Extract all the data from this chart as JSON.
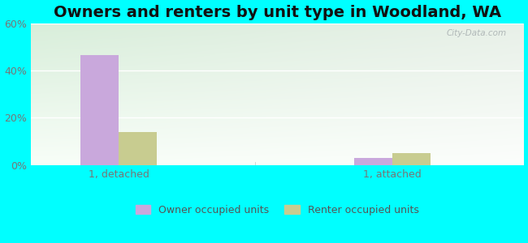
{
  "title": "Owners and renters by unit type in Woodland, WA",
  "categories": [
    "1, detached",
    "1, attached"
  ],
  "owner_values": [
    46.5,
    3.0
  ],
  "renter_values": [
    14.0,
    5.0
  ],
  "owner_color": "#c9a8dc",
  "renter_color": "#c8cc90",
  "ylim": [
    0,
    60
  ],
  "yticks": [
    0,
    20,
    40,
    60
  ],
  "ytick_labels": [
    "0%",
    "20%",
    "40%",
    "60%"
  ],
  "bar_width": 0.35,
  "background_color": "#00ffff",
  "plot_bg_color_topleft": "#d8eeda",
  "plot_bg_color_topright": "#e8f0e8",
  "plot_bg_color_bottom": "#f5faf5",
  "legend_owner": "Owner occupied units",
  "legend_renter": "Renter occupied units",
  "watermark": "City-Data.com",
  "title_fontsize": 14,
  "tick_fontsize": 9,
  "legend_fontsize": 9,
  "group_positions": [
    1.0,
    3.5
  ],
  "xlim": [
    0.2,
    4.7
  ]
}
